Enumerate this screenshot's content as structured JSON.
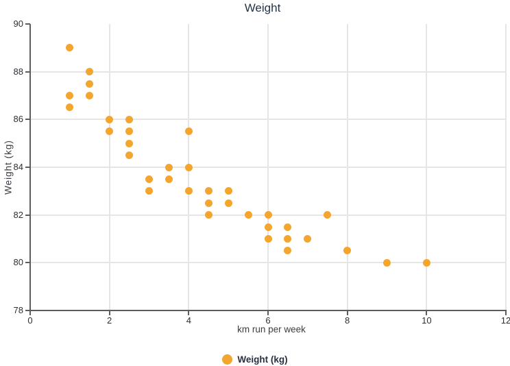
{
  "title": "Weight",
  "legend": {
    "label": "Weight (kg)"
  },
  "colors": {
    "accent_orange": "#F4A52D",
    "grid": "#E5E5E5",
    "axis": "#5B5C60",
    "tick_text": "#2C2E33",
    "title_text": "#243447",
    "axis_title_text": "#3A3D42",
    "legend_text": "#27313F"
  },
  "chart_data": {
    "type": "scatter",
    "title": "Weight",
    "xlabel": "km run per week",
    "ylabel": "Weight (kg)",
    "xlim": [
      0,
      12
    ],
    "ylim": [
      78,
      90
    ],
    "x_ticks": [
      0,
      2,
      4,
      6,
      8,
      10,
      12
    ],
    "y_ticks": [
      78,
      80,
      82,
      84,
      86,
      88,
      90
    ],
    "grid": true,
    "legend_position": "bottom",
    "series": [
      {
        "name": "Weight (kg)",
        "color": "#F4A52D",
        "points": [
          [
            1,
            89
          ],
          [
            1,
            87
          ],
          [
            1,
            86.5
          ],
          [
            1.5,
            88
          ],
          [
            1.5,
            87.5
          ],
          [
            1.5,
            87
          ],
          [
            2,
            86
          ],
          [
            2,
            85.5
          ],
          [
            2.5,
            86
          ],
          [
            2.5,
            85.5
          ],
          [
            2.5,
            85
          ],
          [
            2.5,
            84.5
          ],
          [
            3,
            83.5
          ],
          [
            3,
            83
          ],
          [
            3.5,
            84
          ],
          [
            3.5,
            83.5
          ],
          [
            4,
            85.5
          ],
          [
            4,
            84
          ],
          [
            4,
            83
          ],
          [
            4.5,
            83
          ],
          [
            4.5,
            82.5
          ],
          [
            4.5,
            82
          ],
          [
            5,
            83
          ],
          [
            5,
            82.5
          ],
          [
            5.5,
            82
          ],
          [
            6,
            82
          ],
          [
            6,
            81.5
          ],
          [
            6,
            81
          ],
          [
            6.5,
            81.5
          ],
          [
            6.5,
            81
          ],
          [
            6.5,
            80.5
          ],
          [
            7,
            81
          ],
          [
            7.5,
            82
          ],
          [
            8,
            80.5
          ],
          [
            9,
            80
          ],
          [
            10,
            80
          ]
        ]
      }
    ]
  }
}
